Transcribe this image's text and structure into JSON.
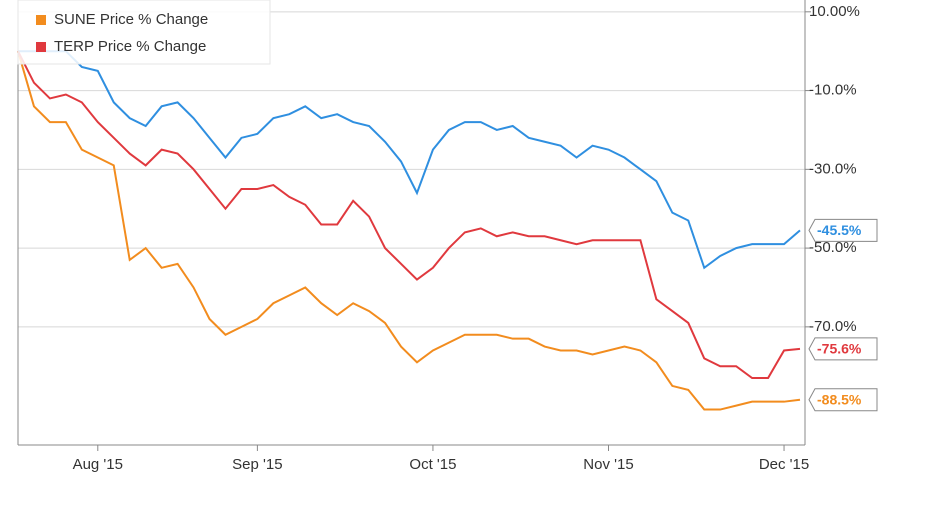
{
  "chart_data": {
    "type": "line",
    "categories": [
      null,
      null,
      null,
      null,
      null,
      "Aug '15",
      null,
      null,
      null,
      null,
      null,
      null,
      null,
      null,
      null,
      "Sep '15",
      null,
      null,
      null,
      null,
      null,
      null,
      null,
      null,
      null,
      null,
      "Oct '15",
      null,
      null,
      null,
      null,
      null,
      null,
      null,
      null,
      null,
      null,
      "Nov '15",
      null,
      null,
      null,
      null,
      null,
      null,
      null,
      null,
      null,
      null,
      "Dec '15",
      null
    ],
    "series": [
      {
        "color": "#2f8fe0",
        "last_label": "-45.5%",
        "values": [
          0,
          0,
          0,
          0,
          -4,
          -5,
          -13,
          -17,
          -19,
          -14,
          -13,
          -17,
          -22,
          -27,
          -22,
          -21,
          -17,
          -16,
          -14,
          -17,
          -16,
          -18,
          -19,
          -23,
          -28,
          -36,
          -25,
          -20,
          -18,
          -18,
          -20,
          -19,
          -22,
          -23,
          -24,
          -27,
          -24,
          -25,
          -27,
          -30,
          -33,
          -41,
          -43,
          -55,
          -52,
          -50,
          -49,
          -49,
          -49,
          -45.5
        ]
      },
      {
        "name": "SUNE Price % Change",
        "color": "#f28c1e",
        "last_label": "-88.5%",
        "values": [
          0,
          -14,
          -18,
          -18,
          -25,
          -27,
          -29,
          -53,
          -50,
          -55,
          -54,
          -60,
          -68,
          -72,
          -70,
          -68,
          -64,
          -62,
          -60,
          -64,
          -67,
          -64,
          -66,
          -69,
          -75,
          -79,
          -76,
          -74,
          -72,
          -72,
          -72,
          -73,
          -73,
          -75,
          -76,
          -76,
          -77,
          -76,
          -75,
          -76,
          -79,
          -85,
          -86,
          -91,
          -91,
          -90,
          -89,
          -89,
          -89,
          -88.5
        ]
      },
      {
        "name": "TERP Price % Change",
        "color": "#e0393e",
        "last_label": "-75.6%",
        "values": [
          0,
          -8,
          -12,
          -11,
          -13,
          -18,
          -22,
          -26,
          -29,
          -25,
          -26,
          -30,
          -35,
          -40,
          -35,
          -35,
          -34,
          -37,
          -39,
          -44,
          -44,
          -38,
          -42,
          -50,
          -54,
          -58,
          -55,
          -50,
          -46,
          -45,
          -47,
          -46,
          -47,
          -47,
          -48,
          -49,
          -48,
          -48,
          -48,
          -48,
          -63,
          -66,
          -69,
          -78,
          -80,
          -80,
          -83,
          -83,
          -76,
          -75.6
        ]
      }
    ],
    "ylim": [
      -100,
      13
    ],
    "yticks": [
      {
        "value": 10,
        "label": "10.00%"
      },
      {
        "value": -10,
        "label": "-10.0%"
      },
      {
        "value": -30,
        "label": "-30.0%"
      },
      {
        "value": -50,
        "label": "-50.0%"
      },
      {
        "value": -70,
        "label": "-70.0%"
      }
    ],
    "grid": true,
    "legend": "top-left"
  }
}
